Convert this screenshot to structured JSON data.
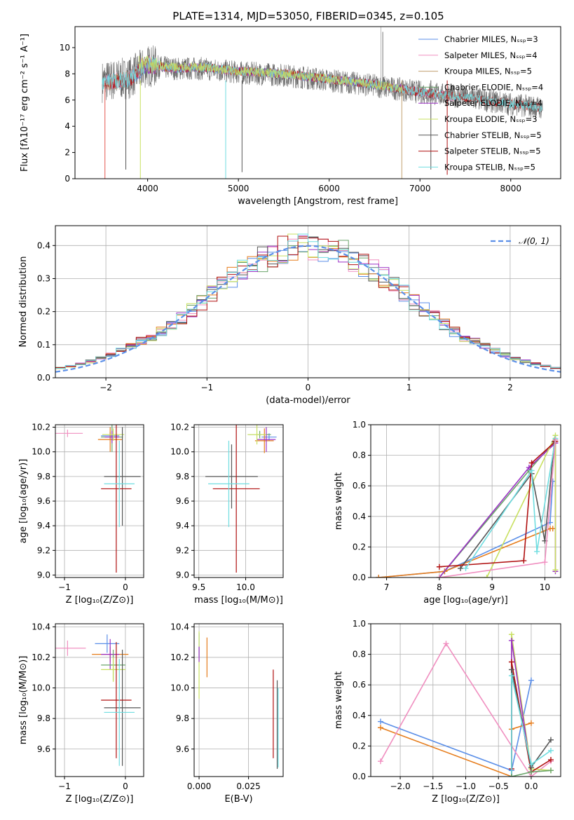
{
  "colors": [
    "#5b8fe8",
    "#e67c1b",
    "#6aa46a",
    "#e5564f",
    "#9b30c5",
    "#c8e060",
    "#555555",
    "#b01010",
    "#6fdde0",
    "#f08fc0"
  ],
  "chart_data": [
    {
      "id": "spectrum",
      "type": "line",
      "title": "PLATE=1314, MJD=53050, FIBERID=0345, z=0.105",
      "xlabel": "wavelength [Angstrom, rest frame]",
      "ylabel": "Flux [fλ10⁻¹⁷ erg cm⁻² s⁻¹ A⁻¹]",
      "xlim": [
        3200,
        8550
      ],
      "ylim": [
        0,
        11.6
      ],
      "xticks": [
        4000,
        5000,
        6000,
        7000,
        8000
      ],
      "yticks": [
        0,
        2,
        4,
        6,
        8,
        10
      ],
      "grid": false,
      "legend_position": "top-right",
      "series": [
        {
          "name": "Chabrier MILES, N_SSP=3",
          "color": "#5b8fe8",
          "x": [
            3540,
            3800,
            4000,
            4300,
            4600,
            5000,
            5500,
            6000,
            6500,
            7000,
            7400
          ],
          "y": [
            7.3,
            7.6,
            8.7,
            8.4,
            8.5,
            8.2,
            8.0,
            7.6,
            7.2,
            6.6,
            6.2
          ]
        },
        {
          "name": "Salpeter MILES, N_SSP=4",
          "color": "#f08fc0",
          "x": [
            3540,
            3800,
            4000,
            4300,
            4600,
            5000,
            5500,
            6000,
            6500,
            7000,
            7400
          ],
          "y": [
            7.3,
            7.7,
            8.8,
            8.4,
            8.5,
            8.2,
            8.0,
            7.6,
            7.2,
            6.6,
            6.2
          ]
        },
        {
          "name": "Kroupa MILES, N_SSP=5",
          "color": "#c2a070",
          "x": [
            3540,
            3800,
            4000,
            4300,
            4600,
            5000,
            5500,
            6000,
            6500,
            7000,
            7400
          ],
          "y": [
            7.3,
            7.6,
            8.7,
            8.4,
            8.5,
            8.2,
            8.0,
            7.6,
            7.2,
            6.6,
            6.2
          ]
        },
        {
          "name": "Chabrier ELODIE, N_SSP=4",
          "color": "#6aa46a",
          "x": [
            3900,
            4300,
            4600,
            5000,
            5500,
            6000,
            6500,
            6800
          ],
          "y": [
            8.6,
            8.4,
            8.5,
            8.2,
            8.0,
            7.6,
            7.2,
            6.9
          ]
        },
        {
          "name": "Salpeter ELODIE, N_SSP=4",
          "color": "#9b30c5",
          "x": [
            3900,
            4300,
            4600,
            5000,
            5500,
            6000,
            6500,
            6800
          ],
          "y": [
            8.7,
            8.4,
            8.5,
            8.2,
            8.0,
            7.6,
            7.2,
            6.9
          ]
        },
        {
          "name": "Kroupa ELODIE, N_SSP=3",
          "color": "#c8e060",
          "x": [
            3900,
            4300,
            4600,
            5000,
            5500,
            6000,
            6500,
            6800
          ],
          "y": [
            8.8,
            8.5,
            8.5,
            8.2,
            8.0,
            7.6,
            7.2,
            6.9
          ]
        },
        {
          "name": "Chabrier STELIB, N_SSP=5",
          "color": "#555555",
          "x": [
            3500,
            3800,
            4000,
            4300,
            4600,
            5000,
            5500,
            6000,
            6500,
            7000,
            7500,
            8000,
            8350
          ],
          "y": [
            7.4,
            7.7,
            8.6,
            8.4,
            8.4,
            8.1,
            7.9,
            7.5,
            7.1,
            6.6,
            6.2,
            5.7,
            5.4
          ]
        },
        {
          "name": "Salpeter STELIB, N_SSP=5",
          "color": "#b01010",
          "x": [
            3500,
            3800,
            4000,
            4300,
            4600,
            5000,
            5500,
            6000,
            6500,
            7000,
            7500,
            8000,
            8350
          ],
          "y": [
            7.3,
            7.6,
            8.7,
            8.4,
            8.5,
            8.2,
            8.0,
            7.6,
            7.2,
            6.6,
            6.2,
            5.7,
            5.4
          ]
        },
        {
          "name": "Kroupa STELIB, N_SSP=5",
          "color": "#6fdde0",
          "x": [
            3500,
            3800,
            4000,
            4300,
            4600,
            5000,
            5500,
            6000,
            6500,
            7000,
            7500,
            8000,
            8350
          ],
          "y": [
            7.3,
            7.6,
            8.8,
            8.4,
            8.5,
            8.2,
            8.0,
            7.6,
            7.2,
            6.6,
            6.2,
            5.7,
            5.4
          ]
        }
      ]
    },
    {
      "id": "residuals",
      "type": "line",
      "title": "",
      "xlabel": "(data-model)/error",
      "ylabel": "Normed distribution",
      "xlim": [
        -2.5,
        2.5
      ],
      "ylim": [
        0,
        0.46
      ],
      "xticks": [
        -2,
        -1,
        0,
        1,
        2
      ],
      "yticks": [
        0.0,
        0.1,
        0.2,
        0.3,
        0.4
      ],
      "grid": true,
      "legend_position": "top-right",
      "series": [
        {
          "name": "𝒩(0, 1)",
          "color": "#5b8fe8",
          "style": "dashed",
          "function": "normal_pdf",
          "mean": 0,
          "sigma": 1
        }
      ],
      "histogram_series_count": 9
    },
    {
      "id": "age-vs-Z",
      "type": "scatter",
      "xlabel": "Z [log₁₀(Z/Z⊙)]",
      "ylabel": "age  [log₁₀(age/yr)]",
      "xlim": [
        -1.15,
        0.3
      ],
      "ylim": [
        8.98,
        10.22
      ],
      "xticks": [
        -1,
        0
      ],
      "yticks": [
        9.0,
        9.2,
        9.4,
        9.6,
        9.8,
        10.0,
        10.2
      ],
      "grid": true,
      "points": [
        {
          "x": -0.95,
          "y": 10.15,
          "xerr": 0.25,
          "yerr": 0.03,
          "c": 9
        },
        {
          "x": -0.25,
          "y": 10.13,
          "xerr": 0.15,
          "yerr": 0.03,
          "c": 0
        },
        {
          "x": -0.25,
          "y": 10.1,
          "xerr": 0.2,
          "yerr": 0.1,
          "c": 1
        },
        {
          "x": -0.22,
          "y": 10.12,
          "xerr": 0.18,
          "yerr": 0.12,
          "c": 2
        },
        {
          "x": -0.22,
          "y": 10.12,
          "xerr": 0.12,
          "yerr": 0.05,
          "c": 4
        },
        {
          "x": -0.2,
          "y": 10.14,
          "xerr": 0.18,
          "yerr": 0.05,
          "c": 5
        },
        {
          "x": -0.05,
          "y": 9.8,
          "xerr": 0.3,
          "yerr": 0.4,
          "c": 6
        },
        {
          "x": -0.15,
          "y": 9.7,
          "xerr": 0.25,
          "yerr": 0.68,
          "c": 7
        },
        {
          "x": -0.1,
          "y": 9.74,
          "xerr": 0.25,
          "yerr": 0.35,
          "c": 8
        }
      ]
    },
    {
      "id": "age-vs-mass",
      "type": "scatter",
      "xlabel": "mass [log₁₀(M/M⊙)]",
      "ylabel": "",
      "xlim": [
        9.45,
        10.4
      ],
      "ylim": [
        8.98,
        10.22
      ],
      "xticks": [
        9.5,
        10.0
      ],
      "yticks": [
        9.0,
        9.2,
        9.4,
        9.6,
        9.8,
        10.0,
        10.2
      ],
      "grid": true,
      "points": [
        {
          "x": 10.25,
          "y": 10.12,
          "xerr": 0.08,
          "yerr": 0.03,
          "c": 0
        },
        {
          "x": 10.2,
          "y": 10.09,
          "xerr": 0.1,
          "yerr": 0.1,
          "c": 1
        },
        {
          "x": 10.15,
          "y": 10.14,
          "xerr": 0.12,
          "yerr": 0.03,
          "c": 2
        },
        {
          "x": 10.22,
          "y": 10.1,
          "xerr": 0.1,
          "yerr": 0.1,
          "c": 4
        },
        {
          "x": 10.12,
          "y": 10.14,
          "xerr": 0.1,
          "yerr": 0.08,
          "c": 5
        },
        {
          "x": 9.85,
          "y": 9.8,
          "xerr": 0.28,
          "yerr": 0.26,
          "c": 6
        },
        {
          "x": 9.9,
          "y": 9.7,
          "xerr": 0.25,
          "yerr": 0.68,
          "c": 7
        },
        {
          "x": 9.82,
          "y": 9.74,
          "xerr": 0.22,
          "yerr": 0.35,
          "c": 8
        }
      ]
    },
    {
      "id": "mass-weight-vs-age",
      "type": "line",
      "xlabel": "age  [log₁₀(age/yr)]",
      "ylabel": "mass weight",
      "xlim": [
        6.7,
        10.3
      ],
      "ylim": [
        0,
        1.0
      ],
      "xticks": [
        7,
        8,
        9,
        10
      ],
      "yticks": [
        0.0,
        0.2,
        0.4,
        0.6,
        0.8,
        1.0
      ],
      "grid": true,
      "series": [
        {
          "c": 0,
          "x": [
            6.85,
            8.1,
            10.1,
            10.15
          ],
          "y": [
            0.0,
            0.04,
            0.36,
            0.63
          ]
        },
        {
          "c": 1,
          "x": [
            6.85,
            8.1,
            10.1,
            10.15
          ],
          "y": [
            0.0,
            0.04,
            0.32,
            0.32
          ]
        },
        {
          "c": 2,
          "x": [
            8.0,
            9.7,
            10.2
          ],
          "y": [
            0.0,
            0.7,
            0.9
          ]
        },
        {
          "c": 4,
          "x": [
            8.0,
            9.7,
            10.2,
            10.2
          ],
          "y": [
            0.0,
            0.72,
            0.88,
            0.04
          ]
        },
        {
          "c": 5,
          "x": [
            8.0,
            8.9,
            10.2,
            10.2
          ],
          "y": [
            0.0,
            0.0,
            0.93,
            0.05
          ]
        },
        {
          "c": 6,
          "x": [
            8.4,
            9.75,
            10.0,
            10.18
          ],
          "y": [
            0.06,
            0.68,
            0.24,
            0.89
          ]
        },
        {
          "c": 7,
          "x": [
            8.0,
            9.6,
            9.75,
            10.2
          ],
          "y": [
            0.07,
            0.11,
            0.75,
            0.89
          ]
        },
        {
          "c": 8,
          "x": [
            8.5,
            9.75,
            9.85,
            10.2
          ],
          "y": [
            0.06,
            0.7,
            0.17,
            0.91
          ]
        },
        {
          "c": 9,
          "x": [
            8.0,
            10.0,
            10.2
          ],
          "y": [
            0.0,
            0.1,
            0.9
          ]
        }
      ]
    },
    {
      "id": "mass-vs-Z",
      "type": "scatter",
      "xlabel": "Z [log₁₀(Z/Z⊙)]",
      "ylabel": "mass [log₁₀(M/M⊙)]",
      "xlim": [
        -1.15,
        0.3
      ],
      "ylim": [
        9.42,
        10.42
      ],
      "xticks": [
        -1,
        0
      ],
      "yticks": [
        9.6,
        9.8,
        10.0,
        10.2,
        10.4
      ],
      "grid": true,
      "points": [
        {
          "x": -0.95,
          "y": 10.26,
          "xerr": 0.3,
          "yerr": 0.05,
          "c": 9
        },
        {
          "x": -0.3,
          "y": 10.29,
          "xerr": 0.2,
          "yerr": 0.06,
          "c": 0
        },
        {
          "x": -0.25,
          "y": 10.22,
          "xerr": 0.3,
          "yerr": 0.05,
          "c": 1
        },
        {
          "x": -0.25,
          "y": 10.22,
          "xerr": 0.15,
          "yerr": 0.1,
          "c": 4
        },
        {
          "x": -0.2,
          "y": 10.15,
          "xerr": 0.2,
          "yerr": 0.1,
          "c": 2
        },
        {
          "x": -0.2,
          "y": 10.12,
          "xerr": 0.2,
          "yerr": 0.08,
          "c": 5
        },
        {
          "x": -0.05,
          "y": 9.87,
          "xerr": 0.3,
          "yerr": 0.38,
          "c": 6
        },
        {
          "x": -0.15,
          "y": 9.92,
          "xerr": 0.25,
          "yerr": 0.38,
          "c": 7
        },
        {
          "x": -0.1,
          "y": 9.84,
          "xerr": 0.25,
          "yerr": 0.35,
          "c": 8
        }
      ]
    },
    {
      "id": "mass-vs-EBV",
      "type": "scatter",
      "xlabel": "E(B-V)",
      "ylabel": "",
      "xlim": [
        -0.0025,
        0.0425
      ],
      "ylim": [
        9.42,
        10.42
      ],
      "xticks": [
        0.0,
        0.025
      ],
      "xticklabels": [
        "0.000",
        "0.025"
      ],
      "yticks": [
        9.6,
        9.8,
        10.0,
        10.2,
        10.4
      ],
      "grid": true,
      "points": [
        {
          "x": 0.0,
          "y": 10.28,
          "xerr": 0,
          "yerr": 0.08,
          "c": 0
        },
        {
          "x": 0.0,
          "y": 10.15,
          "xerr": 0,
          "yerr": 0.22,
          "c": 5
        },
        {
          "x": 0.0,
          "y": 10.22,
          "xerr": 0,
          "yerr": 0.05,
          "c": 4
        },
        {
          "x": 0.004,
          "y": 10.2,
          "xerr": 0,
          "yerr": 0.13,
          "c": 1
        },
        {
          "x": 0.0375,
          "y": 9.83,
          "xerr": 0,
          "yerr": 0.29,
          "c": 7
        },
        {
          "x": 0.0395,
          "y": 9.76,
          "xerr": 0,
          "yerr": 0.29,
          "c": 6
        },
        {
          "x": 0.04,
          "y": 9.74,
          "xerr": 0,
          "yerr": 0.26,
          "c": 8
        }
      ]
    },
    {
      "id": "mass-weight-vs-Z",
      "type": "line",
      "xlabel": "Z [log₁₀(Z/Z⊙)]",
      "ylabel": "mass weight",
      "xlim": [
        -2.45,
        0.45
      ],
      "ylim": [
        0,
        1.0
      ],
      "xticks": [
        -2.0,
        -1.5,
        -1.0,
        -0.5,
        0.0
      ],
      "yticks": [
        0.0,
        0.2,
        0.4,
        0.6,
        0.8,
        1.0
      ],
      "grid": true,
      "series": [
        {
          "c": 0,
          "x": [
            -2.3,
            -0.3,
            0.0
          ],
          "y": [
            0.36,
            0.04,
            0.63
          ]
        },
        {
          "c": 1,
          "x": [
            -2.3,
            -0.3,
            -0.3,
            0.0
          ],
          "y": [
            0.32,
            0.0,
            0.31,
            0.35
          ]
        },
        {
          "c": 9,
          "x": [
            -2.3,
            -1.3,
            0.0,
            0.3
          ],
          "y": [
            0.1,
            0.87,
            0.0,
            0.1
          ]
        },
        {
          "c": 5,
          "x": [
            -0.3,
            -0.3,
            0.0,
            0.3
          ],
          "y": [
            0.0,
            0.93,
            0.05,
            0.04
          ]
        },
        {
          "c": 4,
          "x": [
            -0.3,
            -0.3,
            0.0
          ],
          "y": [
            0.0,
            0.89,
            0.03
          ]
        },
        {
          "c": 7,
          "x": [
            -0.3,
            -0.3,
            0.0,
            0.3
          ],
          "y": [
            0.05,
            0.75,
            0.03,
            0.11
          ]
        },
        {
          "c": 6,
          "x": [
            -0.3,
            -0.3,
            0.0,
            0.3
          ],
          "y": [
            0.0,
            0.7,
            0.06,
            0.24
          ]
        },
        {
          "c": 8,
          "x": [
            -0.3,
            -0.3,
            0.0,
            0.3
          ],
          "y": [
            0.0,
            0.66,
            0.08,
            0.17
          ]
        },
        {
          "c": 2,
          "x": [
            -0.3,
            0.0,
            0.3
          ],
          "y": [
            0.0,
            0.03,
            0.04
          ]
        }
      ]
    }
  ]
}
